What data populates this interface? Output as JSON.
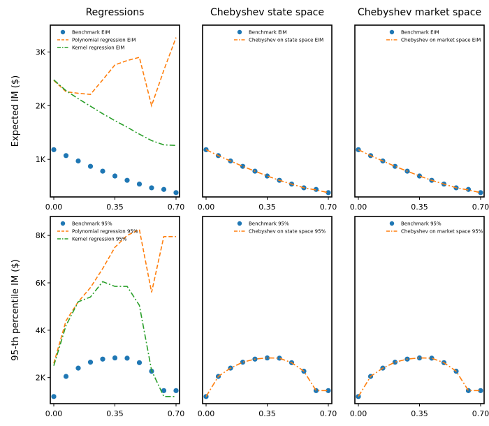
{
  "chart_data": [
    {
      "type": "line",
      "title": "Regressions",
      "xlabel": "",
      "ylabel": "Expected IM ($)",
      "xlim": [
        -0.02,
        0.72
      ],
      "ylim": [
        300,
        3500
      ],
      "x_ticks": [
        0.0,
        0.35,
        0.7
      ],
      "x_tick_labels": [
        "0.00",
        "0.35",
        "0.70"
      ],
      "y_ticks": [
        1000,
        2000,
        3000
      ],
      "y_tick_labels": [
        "1K",
        "2K",
        "3K"
      ],
      "legend_position": "top-left",
      "series": [
        {
          "name": "Benchmark EIM",
          "style": "scatter",
          "color": "#1f77b4",
          "x": [
            0.0,
            0.07,
            0.14,
            0.21,
            0.28,
            0.35,
            0.42,
            0.49,
            0.56,
            0.63,
            0.7
          ],
          "y": [
            1180,
            1070,
            970,
            870,
            780,
            690,
            610,
            540,
            470,
            440,
            380
          ]
        },
        {
          "name": "Polynomial regression EIM",
          "style": "dashed",
          "color": "#ff7f0e",
          "x": [
            0.0,
            0.07,
            0.14,
            0.21,
            0.28,
            0.35,
            0.42,
            0.49,
            0.56,
            0.63,
            0.7
          ],
          "y": [
            2470,
            2260,
            2230,
            2210,
            2480,
            2760,
            2840,
            2900,
            2000,
            2660,
            3270
          ]
        },
        {
          "name": "Kernel regression EIM",
          "style": "dashdot",
          "color": "#2ca02c",
          "x": [
            0.0,
            0.07,
            0.14,
            0.21,
            0.28,
            0.35,
            0.42,
            0.49,
            0.56,
            0.63,
            0.7
          ],
          "y": [
            2480,
            2280,
            2130,
            1990,
            1850,
            1720,
            1600,
            1470,
            1350,
            1270,
            1260
          ]
        }
      ]
    },
    {
      "type": "line",
      "title": "Chebyshev state space",
      "xlabel": "",
      "ylabel": "",
      "xlim": [
        -0.02,
        0.72
      ],
      "ylim": [
        300,
        3500
      ],
      "x_ticks": [
        0.0,
        0.35,
        0.7
      ],
      "x_tick_labels": [
        "0.00",
        "0.35",
        "0.70"
      ],
      "y_ticks": [],
      "y_tick_labels": [],
      "legend_position": "top-center",
      "series": [
        {
          "name": "Benchmark EIM",
          "style": "scatter",
          "color": "#1f77b4",
          "x": [
            0.0,
            0.07,
            0.14,
            0.21,
            0.28,
            0.35,
            0.42,
            0.49,
            0.56,
            0.63,
            0.7
          ],
          "y": [
            1180,
            1070,
            970,
            870,
            780,
            690,
            610,
            540,
            470,
            440,
            380
          ]
        },
        {
          "name": "Chebyshev on state space EIM",
          "style": "dashdot",
          "color": "#ff7f0e",
          "x": [
            0.0,
            0.07,
            0.14,
            0.21,
            0.28,
            0.35,
            0.42,
            0.49,
            0.56,
            0.63,
            0.7
          ],
          "y": [
            1180,
            1070,
            970,
            870,
            780,
            690,
            610,
            540,
            470,
            430,
            380
          ]
        }
      ]
    },
    {
      "type": "line",
      "title": "Chebyshev market space",
      "xlabel": "",
      "ylabel": "",
      "xlim": [
        -0.02,
        0.72
      ],
      "ylim": [
        300,
        3500
      ],
      "x_ticks": [
        0.0,
        0.35,
        0.7
      ],
      "x_tick_labels": [
        "0.00",
        "0.35",
        "0.70"
      ],
      "y_ticks": [],
      "y_tick_labels": [],
      "legend_position": "top-center",
      "series": [
        {
          "name": "Benchmark EIM",
          "style": "scatter",
          "color": "#1f77b4",
          "x": [
            0.0,
            0.07,
            0.14,
            0.21,
            0.28,
            0.35,
            0.42,
            0.49,
            0.56,
            0.63,
            0.7
          ],
          "y": [
            1180,
            1070,
            970,
            870,
            780,
            690,
            610,
            540,
            470,
            440,
            380
          ]
        },
        {
          "name": "Chebyshev on market space EIM",
          "style": "dashdot",
          "color": "#ff7f0e",
          "x": [
            0.0,
            0.07,
            0.14,
            0.21,
            0.28,
            0.35,
            0.42,
            0.49,
            0.56,
            0.63,
            0.7
          ],
          "y": [
            1180,
            1070,
            970,
            870,
            780,
            690,
            610,
            540,
            470,
            430,
            380
          ]
        }
      ]
    },
    {
      "type": "line",
      "title": "",
      "xlabel": "",
      "ylabel": "95-th percentile IM ($)",
      "xlim": [
        -0.02,
        0.72
      ],
      "ylim": [
        900,
        8800
      ],
      "x_ticks": [
        0.0,
        0.35,
        0.7
      ],
      "x_tick_labels": [
        "0.00",
        "0.35",
        "0.70"
      ],
      "y_ticks": [
        2000,
        4000,
        6000,
        8000
      ],
      "y_tick_labels": [
        "2K",
        "4K",
        "6K",
        "8K"
      ],
      "legend_position": "top-left",
      "series": [
        {
          "name": "Benchmark 95%",
          "style": "scatter",
          "color": "#1f77b4",
          "x": [
            0.0,
            0.07,
            0.14,
            0.21,
            0.28,
            0.35,
            0.42,
            0.49,
            0.56,
            0.63,
            0.7
          ],
          "y": [
            1200,
            2050,
            2400,
            2650,
            2780,
            2830,
            2820,
            2630,
            2270,
            1450,
            1450
          ]
        },
        {
          "name": "Polynomial regression 95%",
          "style": "dashed",
          "color": "#ff7f0e",
          "x": [
            0.0,
            0.07,
            0.14,
            0.21,
            0.28,
            0.35,
            0.42,
            0.49,
            0.56,
            0.63,
            0.7
          ],
          "y": [
            2600,
            4400,
            5200,
            5800,
            6600,
            7500,
            8000,
            8250,
            5600,
            7950,
            7950
          ]
        },
        {
          "name": "Kernel regression 95%",
          "style": "dashdot",
          "color": "#2ca02c",
          "x": [
            0.0,
            0.07,
            0.14,
            0.21,
            0.28,
            0.35,
            0.42,
            0.49,
            0.56,
            0.63,
            0.7
          ],
          "y": [
            2500,
            4200,
            5200,
            5400,
            6050,
            5850,
            5850,
            5050,
            2300,
            1200,
            1200
          ]
        }
      ]
    },
    {
      "type": "line",
      "title": "",
      "xlabel": "",
      "ylabel": "",
      "xlim": [
        -0.02,
        0.72
      ],
      "ylim": [
        900,
        8800
      ],
      "x_ticks": [
        0.0,
        0.35,
        0.7
      ],
      "x_tick_labels": [
        "0.00",
        "0.35",
        "0.70"
      ],
      "y_ticks": [],
      "y_tick_labels": [],
      "legend_position": "top-center",
      "series": [
        {
          "name": "Benchmark 95%",
          "style": "scatter",
          "color": "#1f77b4",
          "x": [
            0.0,
            0.07,
            0.14,
            0.21,
            0.28,
            0.35,
            0.42,
            0.49,
            0.56,
            0.63,
            0.7
          ],
          "y": [
            1200,
            2050,
            2400,
            2650,
            2780,
            2830,
            2820,
            2630,
            2270,
            1450,
            1450
          ]
        },
        {
          "name": "Chebyshev on state space 95%",
          "style": "dashdot",
          "color": "#ff7f0e",
          "x": [
            0.0,
            0.07,
            0.14,
            0.21,
            0.28,
            0.35,
            0.42,
            0.49,
            0.56,
            0.63,
            0.7
          ],
          "y": [
            1200,
            2050,
            2400,
            2650,
            2780,
            2830,
            2820,
            2630,
            2270,
            1450,
            1450
          ]
        }
      ]
    },
    {
      "type": "line",
      "title": "",
      "xlabel": "",
      "ylabel": "",
      "xlim": [
        -0.02,
        0.72
      ],
      "ylim": [
        900,
        8800
      ],
      "x_ticks": [
        0.0,
        0.35,
        0.7
      ],
      "x_tick_labels": [
        "0.00",
        "0.35",
        "0.70"
      ],
      "y_ticks": [],
      "y_tick_labels": [],
      "legend_position": "top-center",
      "series": [
        {
          "name": "Benchmark 95%",
          "style": "scatter",
          "color": "#1f77b4",
          "x": [
            0.0,
            0.07,
            0.14,
            0.21,
            0.28,
            0.35,
            0.42,
            0.49,
            0.56,
            0.63,
            0.7
          ],
          "y": [
            1200,
            2050,
            2400,
            2650,
            2780,
            2830,
            2820,
            2630,
            2270,
            1450,
            1450
          ]
        },
        {
          "name": "Chebyshev on market space 95%",
          "style": "dashdot",
          "color": "#ff7f0e",
          "x": [
            0.0,
            0.07,
            0.14,
            0.21,
            0.28,
            0.35,
            0.42,
            0.49,
            0.56,
            0.63,
            0.7
          ],
          "y": [
            1200,
            2050,
            2400,
            2650,
            2780,
            2830,
            2820,
            2630,
            2270,
            1450,
            1450
          ]
        }
      ]
    }
  ]
}
